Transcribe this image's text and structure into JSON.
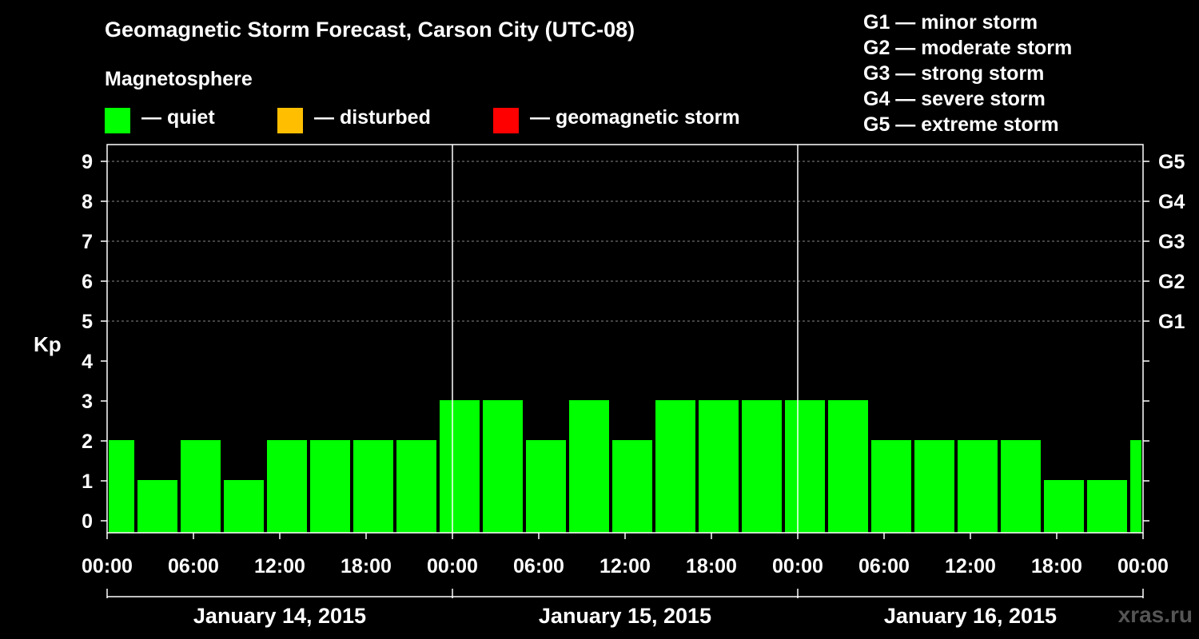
{
  "header": {
    "title": "Geomagnetic Storm Forecast, Carson City (UTC-08)",
    "magnetosphere_label": "Magnetosphere"
  },
  "legend": [
    {
      "label": "— quiet",
      "color": "#00ff00"
    },
    {
      "label": "— disturbed",
      "color": "#ffbf00"
    },
    {
      "label": "— geomagnetic storm",
      "color": "#ff0000"
    }
  ],
  "g_scale": [
    "G1 — minor storm",
    "G2 — moderate storm",
    "G3 — strong storm",
    "G4 — severe storm",
    "G5 — extreme storm"
  ],
  "watermark": "xras.ru",
  "chart_data": {
    "type": "bar",
    "title": "Geomagnetic Storm Forecast, Carson City (UTC-08)",
    "ylabel": "Kp",
    "ylim": [
      0,
      9
    ],
    "y_ticks": [
      "0",
      "1",
      "2",
      "3",
      "4",
      "5",
      "6",
      "7",
      "8",
      "9"
    ],
    "right_ticks": [
      {
        "kp": 5,
        "label": "G1"
      },
      {
        "kp": 6,
        "label": "G2"
      },
      {
        "kp": 7,
        "label": "G3"
      },
      {
        "kp": 8,
        "label": "G4"
      },
      {
        "kp": 9,
        "label": "G5"
      }
    ],
    "x_ticks": [
      "00:00",
      "06:00",
      "12:00",
      "18:00",
      "00:00",
      "06:00",
      "12:00",
      "18:00",
      "00:00",
      "06:00",
      "12:00",
      "18:00",
      "00:00"
    ],
    "days": [
      "January 14, 2015",
      "January 15, 2015",
      "January 16, 2015"
    ],
    "bar_start_hour": -1,
    "bar_width_hours": 3,
    "values": [
      2,
      1,
      2,
      1,
      2,
      2,
      2,
      2,
      3,
      3,
      2,
      3,
      2,
      3,
      3,
      3,
      3,
      3,
      2,
      2,
      2,
      2,
      1,
      1,
      2
    ],
    "color": "#00ff00"
  }
}
